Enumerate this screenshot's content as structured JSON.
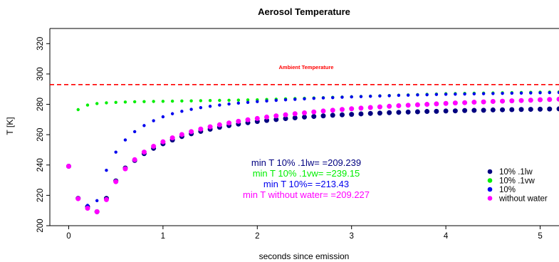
{
  "chart_data": {
    "type": "scatter",
    "title": "Aerosol Temperature",
    "xlabel": "seconds since emission",
    "ylabel": "T [K]",
    "xlim": [
      -0.2,
      5.2
    ],
    "ylim": [
      200,
      330
    ],
    "xticks": [
      0,
      1,
      2,
      3,
      4,
      5
    ],
    "yticks": [
      200,
      220,
      240,
      260,
      280,
      300,
      320
    ],
    "grid": false,
    "legend_position": "bottom-right",
    "reference_line": {
      "label": "Ambient Temperature",
      "y": 293,
      "color": "#ff0000",
      "style": "dashed"
    },
    "annotations": [
      {
        "text": "min T 10% .1lw=  =209.239",
        "color": "#000080"
      },
      {
        "text": "min T 10% .1vw=  =239.15",
        "color": "#00ee00"
      },
      {
        "text": "min T 10%=  =213.43",
        "color": "#0000ee"
      },
      {
        "text": "min T without water=  =209.227",
        "color": "#ff00ff"
      }
    ],
    "series": [
      {
        "name": "10% .1lw",
        "color": "#000080",
        "size": "large",
        "x": [
          0,
          0.1,
          0.2,
          0.3,
          0.4,
          0.5,
          0.6,
          0.7,
          0.8,
          0.9,
          1.0,
          1.1,
          1.2,
          1.3,
          1.4,
          1.5,
          1.6,
          1.7,
          1.8,
          1.9,
          2.0,
          2.1,
          2.2,
          2.3,
          2.4,
          2.5,
          2.6,
          2.7,
          2.8,
          2.9,
          3.0,
          3.1,
          3.2,
          3.3,
          3.4,
          3.5,
          3.6,
          3.7,
          3.8,
          3.9,
          4.0,
          4.1,
          4.2,
          4.3,
          4.4,
          4.5,
          4.6,
          4.7,
          4.8,
          4.9,
          5.0,
          5.1,
          5.2
        ],
        "y": [
          239.2,
          218,
          212.5,
          209.2,
          218,
          229.5,
          238,
          243,
          247.5,
          251,
          254,
          256.5,
          258.8,
          260.6,
          262.2,
          263.6,
          264.9,
          266,
          267,
          267.9,
          268.7,
          269.4,
          270,
          270.6,
          271.1,
          271.6,
          272,
          272.4,
          272.8,
          273.1,
          273.4,
          273.7,
          274,
          274.2,
          274.5,
          274.7,
          274.9,
          275.1,
          275.3,
          275.4,
          275.6,
          275.7,
          275.9,
          276,
          276.1,
          276.3,
          276.4,
          276.5,
          276.6,
          276.7,
          276.8,
          276.9,
          277
        ]
      },
      {
        "name": "10% .1vw",
        "color": "#00ee00",
        "size": "small",
        "x": [
          0,
          0.1,
          0.2,
          0.3,
          0.4,
          0.5,
          0.6,
          0.7,
          0.8,
          0.9,
          1.0,
          1.1,
          1.2,
          1.3,
          1.4,
          1.5,
          1.6,
          1.7,
          1.8,
          1.9,
          2.0,
          2.1,
          2.2,
          2.3,
          2.4,
          2.5,
          2.6,
          2.7,
          2.8,
          2.9,
          3.0,
          3.1,
          3.2,
          3.3,
          3.4,
          3.5,
          3.6,
          3.7,
          3.8,
          3.9,
          4.0,
          4.1,
          4.2,
          4.3,
          4.4,
          4.5,
          4.6,
          4.7,
          4.8,
          4.9,
          5.0,
          5.1,
          5.2
        ],
        "y": [
          239.2,
          276.5,
          279.5,
          280.5,
          281,
          281.3,
          281.5,
          281.7,
          281.8,
          281.9,
          282,
          282.1,
          282.2,
          282.3,
          282.4,
          282.5,
          282.6,
          282.7,
          282.8,
          282.9,
          283,
          283.2,
          283.4,
          283.6,
          283.8,
          284,
          284.2,
          284.4,
          284.6,
          284.8,
          285,
          285.2,
          285.4,
          285.6,
          285.8,
          286,
          286.2,
          286.4,
          286.6,
          286.8,
          287,
          287.1,
          287.2,
          287.3,
          287.4,
          287.5,
          287.6,
          287.7,
          287.8,
          287.9,
          288,
          288.1,
          288.2
        ]
      },
      {
        "name": "10%",
        "color": "#0000ee",
        "size": "small",
        "x": [
          0,
          0.1,
          0.2,
          0.3,
          0.4,
          0.5,
          0.6,
          0.7,
          0.8,
          0.9,
          1.0,
          1.1,
          1.2,
          1.3,
          1.4,
          1.5,
          1.6,
          1.7,
          1.8,
          1.9,
          2.0,
          2.1,
          2.2,
          2.3,
          2.4,
          2.5,
          2.6,
          2.7,
          2.8,
          2.9,
          3.0,
          3.1,
          3.2,
          3.3,
          3.4,
          3.5,
          3.6,
          3.7,
          3.8,
          3.9,
          4.0,
          4.1,
          4.2,
          4.3,
          4.4,
          4.5,
          4.6,
          4.7,
          4.8,
          4.9,
          5.0,
          5.1,
          5.2
        ],
        "y": [
          239.2,
          217.5,
          213.4,
          216.5,
          236.5,
          248.5,
          256.5,
          262,
          266,
          269.2,
          271.8,
          273.8,
          275.4,
          276.7,
          277.8,
          278.7,
          279.5,
          280.2,
          280.8,
          281.3,
          281.8,
          282.2,
          282.6,
          283,
          283.3,
          283.6,
          283.9,
          284.2,
          284.4,
          284.7,
          284.9,
          285.1,
          285.3,
          285.5,
          285.7,
          285.9,
          286,
          286.2,
          286.3,
          286.5,
          286.6,
          286.7,
          286.8,
          286.9,
          287,
          287.1,
          287.2,
          287.3,
          287.4,
          287.5,
          287.6,
          287.7,
          287.8
        ]
      },
      {
        "name": "without water",
        "color": "#ff00ff",
        "size": "large",
        "x": [
          0,
          0.1,
          0.2,
          0.3,
          0.4,
          0.5,
          0.6,
          0.7,
          0.8,
          0.9,
          1.0,
          1.1,
          1.2,
          1.3,
          1.4,
          1.5,
          1.6,
          1.7,
          1.8,
          1.9,
          2.0,
          2.1,
          2.2,
          2.3,
          2.4,
          2.5,
          2.6,
          2.7,
          2.8,
          2.9,
          3.0,
          3.1,
          3.2,
          3.3,
          3.4,
          3.5,
          3.6,
          3.7,
          3.8,
          3.9,
          4.0,
          4.1,
          4.2,
          4.3,
          4.4,
          4.5,
          4.6,
          4.7,
          4.8,
          4.9,
          5.0,
          5.1,
          5.2
        ],
        "y": [
          239.2,
          217.8,
          211.5,
          209.2,
          217.2,
          229,
          237.5,
          243.5,
          248.5,
          252.3,
          255.3,
          257.9,
          260.1,
          262,
          263.7,
          265.2,
          266.5,
          267.7,
          268.8,
          269.8,
          270.7,
          271.6,
          272.4,
          273.1,
          273.8,
          274.4,
          275,
          275.6,
          276.1,
          276.6,
          277.1,
          277.5,
          277.9,
          278.3,
          278.7,
          279.1,
          279.4,
          279.7,
          280,
          280.3,
          280.6,
          280.9,
          281.1,
          281.4,
          281.6,
          281.9,
          282.1,
          282.3,
          282.5,
          282.7,
          283,
          283.2,
          283.4
        ]
      }
    ]
  }
}
